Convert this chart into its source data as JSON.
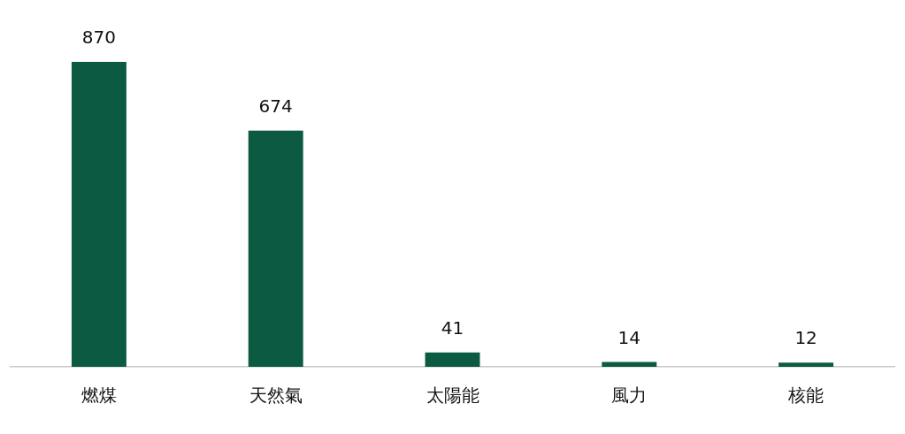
{
  "chart_data": {
    "type": "bar",
    "categories": [
      "燃煤",
      "天然氣",
      "太陽能",
      "風力",
      "核能"
    ],
    "values": [
      870,
      674,
      41,
      14,
      12
    ],
    "color": "#0b5a41",
    "data_labels": true
  }
}
